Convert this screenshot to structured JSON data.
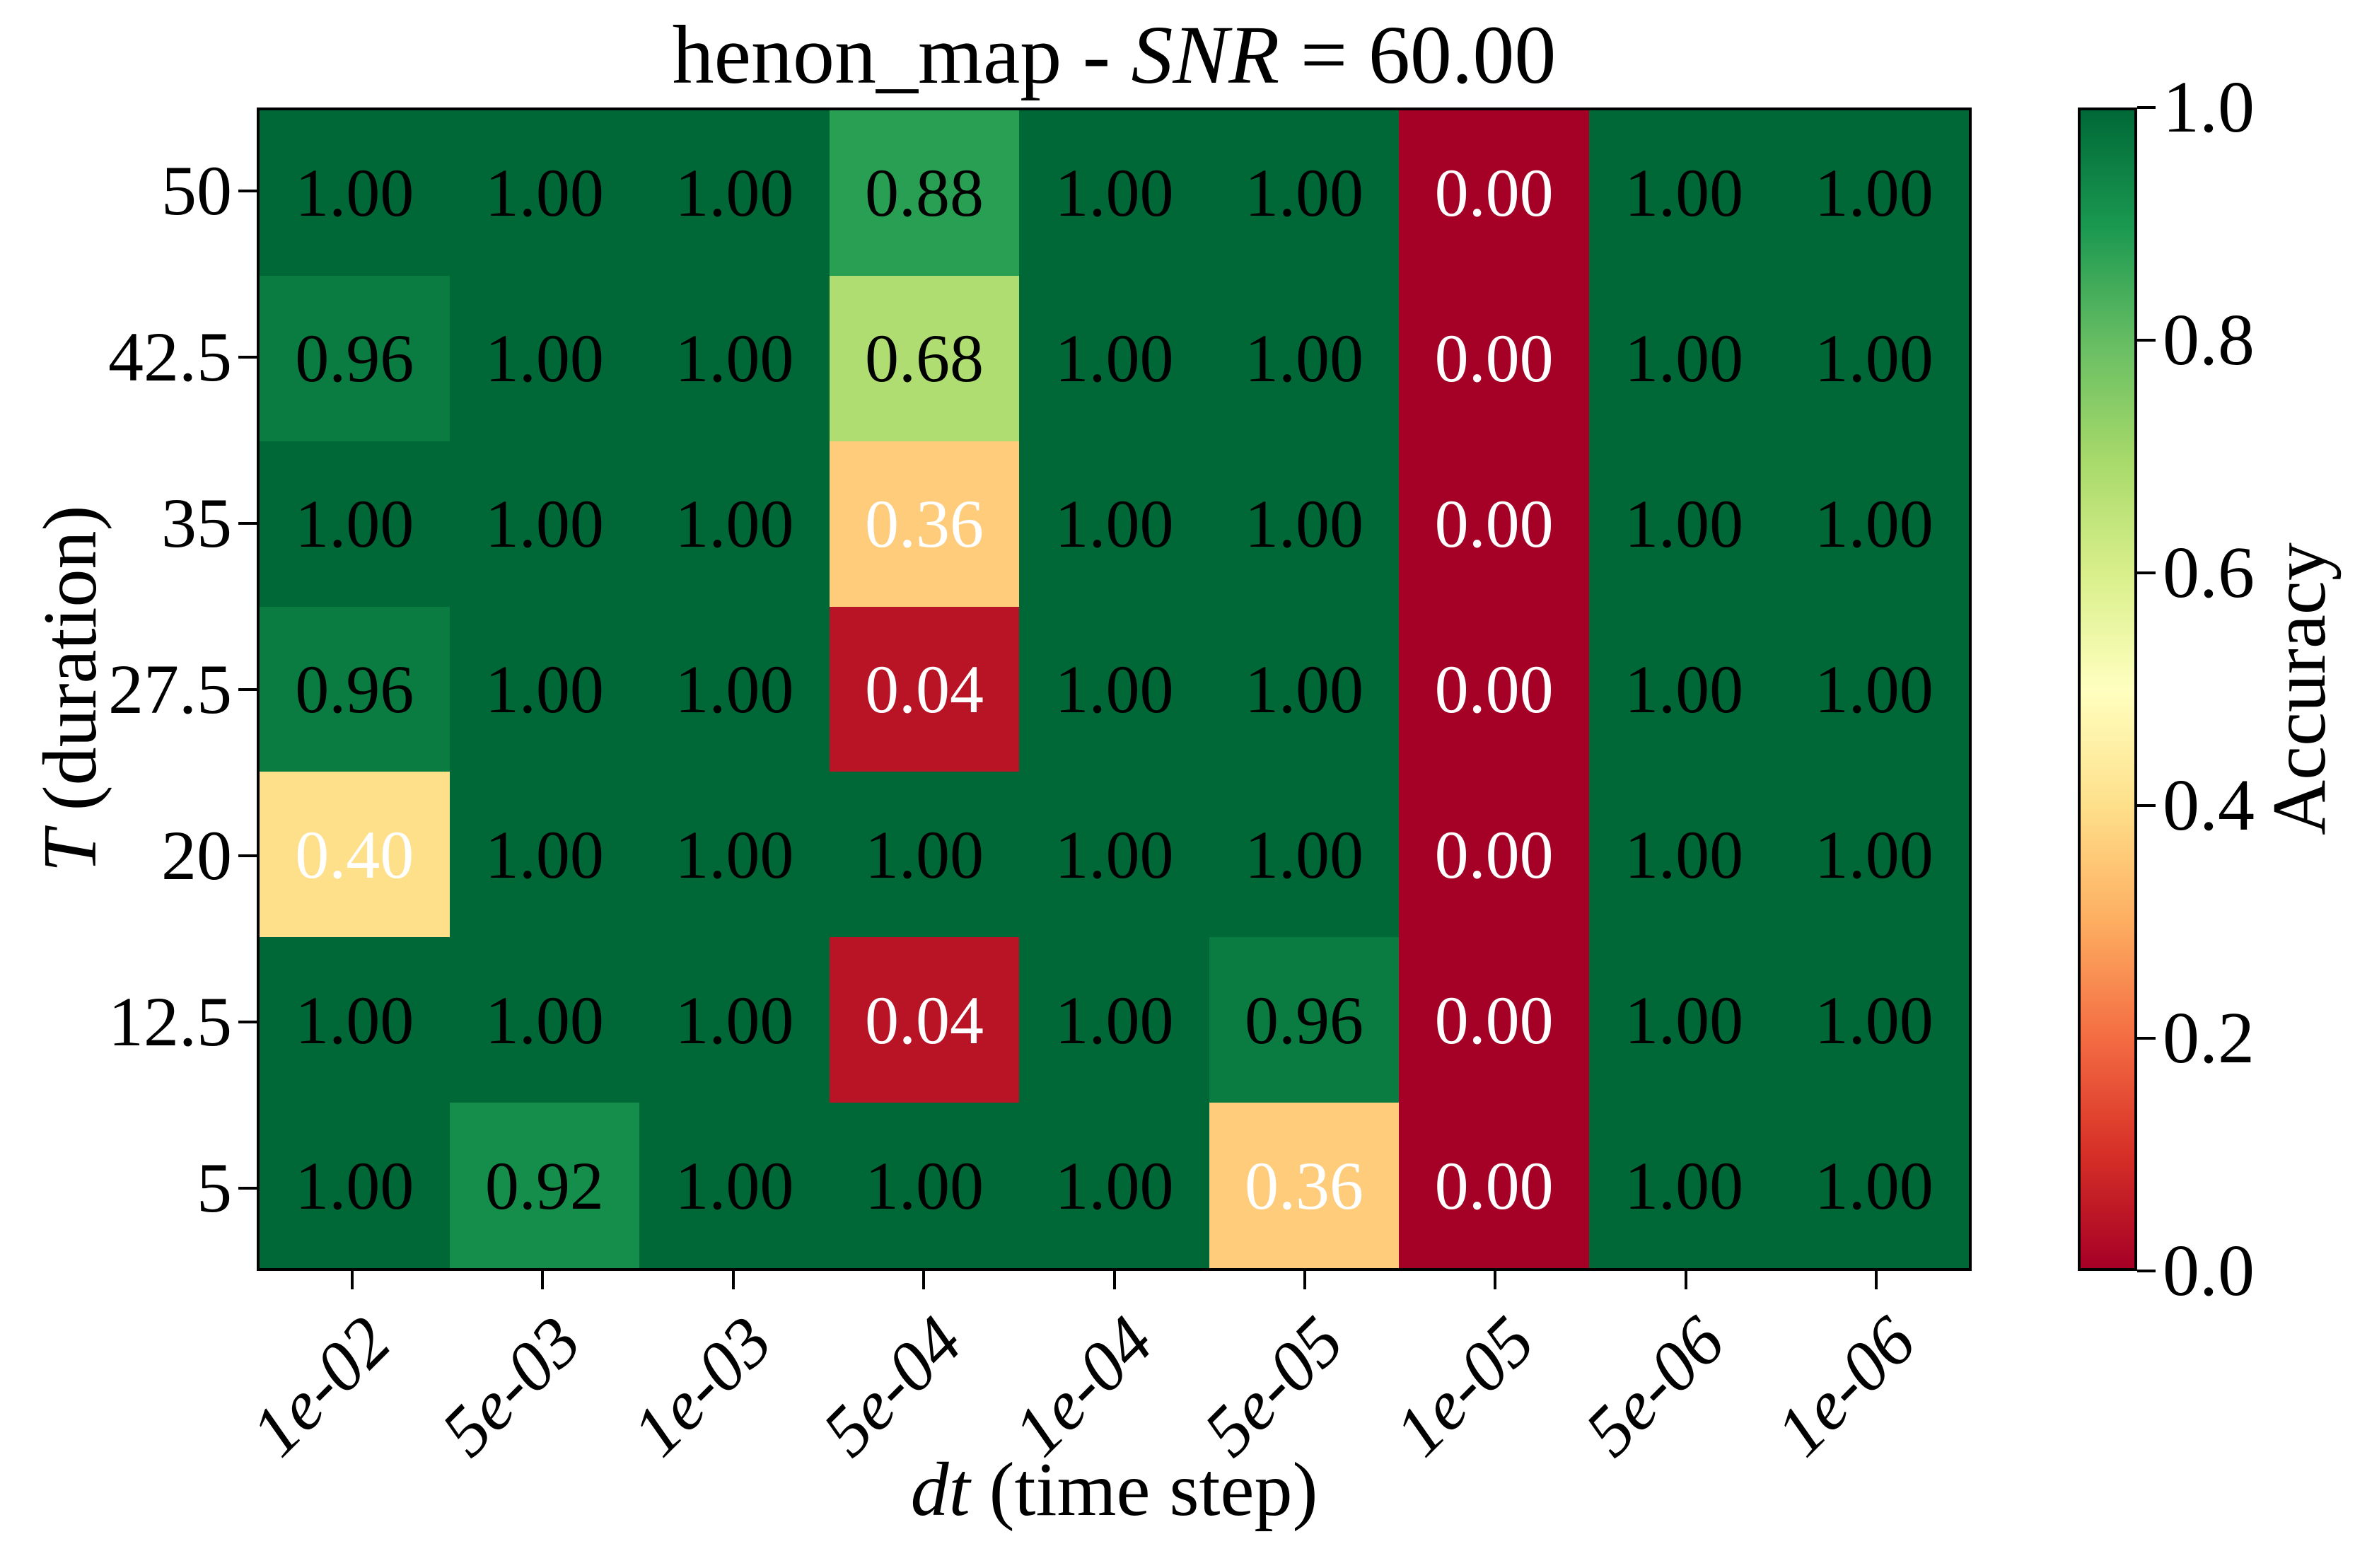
{
  "figure": {
    "title": {
      "pre": "henon_map - ",
      "math": "SNR",
      "post": " = 60.00"
    },
    "xlabel": {
      "math": "dt",
      "rest": " (time step)"
    },
    "ylabel": {
      "math": "T",
      "rest": " (duration)"
    },
    "background": "#ffffff",
    "spine_color": "#000000"
  },
  "chart_data": {
    "type": "heatmap",
    "title": "henon_map - SNR = 60.00",
    "xlabel": "dt (time step)",
    "ylabel": "T (duration)",
    "x_categories": [
      "1e-02",
      "5e-03",
      "1e-03",
      "5e-04",
      "1e-04",
      "5e-05",
      "1e-05",
      "5e-06",
      "1e-06"
    ],
    "y_categories": [
      "50",
      "42.5",
      "35",
      "27.5",
      "20",
      "12.5",
      "5"
    ],
    "rows": [
      [
        1.0,
        1.0,
        1.0,
        0.88,
        1.0,
        1.0,
        0.0,
        1.0,
        1.0
      ],
      [
        0.96,
        1.0,
        1.0,
        0.68,
        1.0,
        1.0,
        0.0,
        1.0,
        1.0
      ],
      [
        1.0,
        1.0,
        1.0,
        0.36,
        1.0,
        1.0,
        0.0,
        1.0,
        1.0
      ],
      [
        0.96,
        1.0,
        1.0,
        0.04,
        1.0,
        1.0,
        0.0,
        1.0,
        1.0
      ],
      [
        0.4,
        1.0,
        1.0,
        1.0,
        1.0,
        1.0,
        0.0,
        1.0,
        1.0
      ],
      [
        1.0,
        1.0,
        1.0,
        0.04,
        1.0,
        0.96,
        0.0,
        1.0,
        1.0
      ],
      [
        1.0,
        0.92,
        1.0,
        1.0,
        1.0,
        0.36,
        0.0,
        1.0,
        1.0
      ]
    ],
    "value_decimals": 2,
    "text_white_below": 0.5,
    "text_color_light": "#ffffff",
    "text_color_dark": "#000000",
    "colorbar": {
      "label": "Accuracy",
      "tick_labels": [
        "1.0",
        "0.8",
        "0.6",
        "0.4",
        "0.2",
        "0.0"
      ],
      "tick_values": [
        1.0,
        0.8,
        0.6,
        0.4,
        0.2,
        0.0
      ],
      "range": [
        0,
        1
      ],
      "colormap": "RdYlGn",
      "stops": [
        "#a50026",
        "#d73027",
        "#f46d43",
        "#fdae61",
        "#fee08b",
        "#ffffbf",
        "#d9ef8b",
        "#a6d96a",
        "#66bd63",
        "#1a9850",
        "#006837"
      ]
    }
  }
}
